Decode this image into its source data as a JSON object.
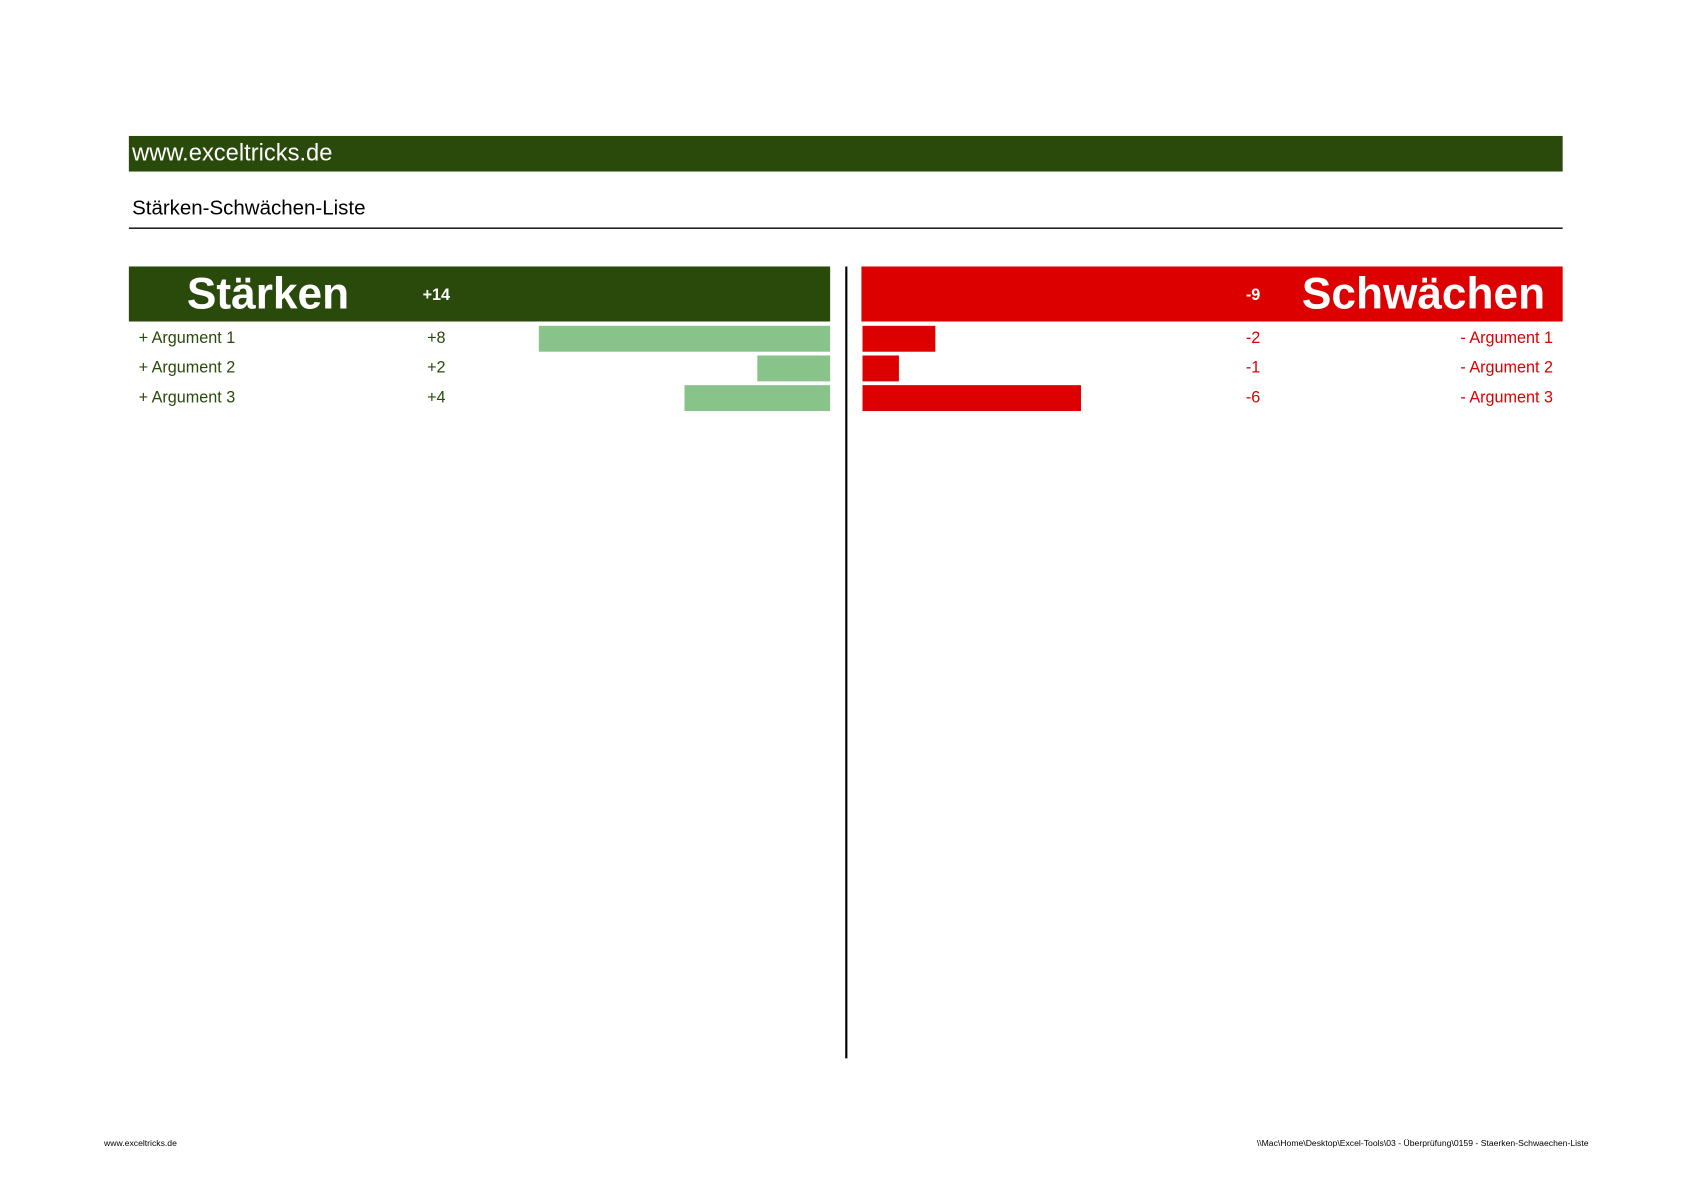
{
  "header": {
    "site": "www.exceltricks.de",
    "title": "Stärken-Schwächen-Liste"
  },
  "strengths": {
    "title": "Stärken",
    "total": {
      "value": 14,
      "label": "+14"
    },
    "color": "#2a4a0c",
    "bar_color": "#88c389",
    "items": [
      {
        "label": "+ Argument 1",
        "value": {
          "value": 8,
          "label": "+8"
        }
      },
      {
        "label": "+ Argument 2",
        "value": {
          "value": 2,
          "label": "+2"
        }
      },
      {
        "label": "+ Argument 3",
        "value": {
          "value": 4,
          "label": "+4"
        }
      }
    ]
  },
  "weaknesses": {
    "title": "Schwächen",
    "total": -9,
    "color": "#dd0000",
    "items": [
      {
        "label": "- Argument 1",
        "value": -2
      },
      {
        "label": "- Argument 2",
        "value": -1
      },
      {
        "label": "- Argument 3",
        "value": -6
      }
    ]
  },
  "footer": {
    "left": "www.exceltricks.de",
    "right": "\\\\Mac\\Home\\Desktop\\Excel-Tools\\03 - Überprüfung\\0159 - Staerken-Schwaechen-Liste"
  }
}
